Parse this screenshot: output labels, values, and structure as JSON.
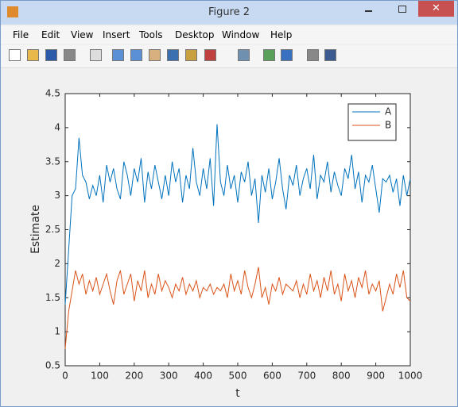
{
  "window": {
    "title": "Figure 2",
    "menu": [
      "File",
      "Edit",
      "View",
      "Insert",
      "Tools",
      "Desktop",
      "Window",
      "Help"
    ]
  },
  "chart_data": {
    "type": "line",
    "xlabel": "t",
    "ylabel": "Estimate",
    "xlim": [
      0,
      1000
    ],
    "ylim": [
      0.5,
      4.5
    ],
    "xticks": [
      0,
      100,
      200,
      300,
      400,
      500,
      600,
      700,
      800,
      900,
      1000
    ],
    "yticks": [
      0.5,
      1,
      1.5,
      2,
      2.5,
      3,
      3.5,
      4,
      4.5
    ],
    "legend": "northeast",
    "grid": false,
    "x": [
      0,
      10,
      20,
      30,
      40,
      50,
      60,
      70,
      80,
      90,
      100,
      110,
      120,
      130,
      140,
      150,
      160,
      170,
      180,
      190,
      200,
      210,
      220,
      230,
      240,
      250,
      260,
      270,
      280,
      290,
      300,
      310,
      320,
      330,
      340,
      350,
      360,
      370,
      380,
      390,
      400,
      410,
      420,
      430,
      440,
      450,
      460,
      470,
      480,
      490,
      500,
      510,
      520,
      530,
      540,
      550,
      560,
      570,
      580,
      590,
      600,
      610,
      620,
      630,
      640,
      650,
      660,
      670,
      680,
      690,
      700,
      710,
      720,
      730,
      740,
      750,
      760,
      770,
      780,
      790,
      800,
      810,
      820,
      830,
      840,
      850,
      860,
      870,
      880,
      890,
      900,
      910,
      920,
      930,
      940,
      950,
      960,
      970,
      980,
      990,
      1000
    ],
    "series": [
      {
        "name": "A",
        "color": "#0072bd",
        "values": [
          1.4,
          2.2,
          3.0,
          3.1,
          3.85,
          3.3,
          3.2,
          2.95,
          3.15,
          3.0,
          3.3,
          2.9,
          3.45,
          3.2,
          3.4,
          3.1,
          2.95,
          3.5,
          3.3,
          3.0,
          3.4,
          3.2,
          3.55,
          2.9,
          3.35,
          3.1,
          3.45,
          3.2,
          2.95,
          3.3,
          3.0,
          3.5,
          3.2,
          3.4,
          2.9,
          3.3,
          3.1,
          3.7,
          3.2,
          3.0,
          3.4,
          3.1,
          3.55,
          2.85,
          4.05,
          3.2,
          3.0,
          3.45,
          3.1,
          3.3,
          2.9,
          3.35,
          3.2,
          3.5,
          3.0,
          3.25,
          2.6,
          3.3,
          3.05,
          3.4,
          2.95,
          3.2,
          3.55,
          3.1,
          2.8,
          3.3,
          3.15,
          3.45,
          3.0,
          3.25,
          3.4,
          3.1,
          3.6,
          2.95,
          3.3,
          3.2,
          3.5,
          3.05,
          3.35,
          3.15,
          3.0,
          3.4,
          3.25,
          3.6,
          3.1,
          3.35,
          2.9,
          3.3,
          3.2,
          3.45,
          3.1,
          2.75,
          3.25,
          3.2,
          3.3,
          3.05,
          3.25,
          2.85,
          3.3,
          3.0,
          3.25
        ]
      },
      {
        "name": "B",
        "color": "#d95319",
        "values": [
          0.75,
          1.3,
          1.6,
          1.9,
          1.7,
          1.85,
          1.55,
          1.75,
          1.6,
          1.8,
          1.55,
          1.7,
          1.85,
          1.6,
          1.4,
          1.75,
          1.9,
          1.55,
          1.7,
          1.85,
          1.45,
          1.75,
          1.6,
          1.9,
          1.5,
          1.7,
          1.55,
          1.85,
          1.6,
          1.75,
          1.65,
          1.5,
          1.7,
          1.6,
          1.8,
          1.55,
          1.7,
          1.6,
          1.75,
          1.5,
          1.65,
          1.6,
          1.7,
          1.55,
          1.65,
          1.6,
          1.7,
          1.5,
          1.85,
          1.6,
          1.75,
          1.55,
          1.9,
          1.65,
          1.5,
          1.7,
          1.95,
          1.5,
          1.65,
          1.4,
          1.7,
          1.6,
          1.8,
          1.55,
          1.7,
          1.65,
          1.6,
          1.75,
          1.5,
          1.7,
          1.55,
          1.85,
          1.6,
          1.75,
          1.5,
          1.8,
          1.6,
          1.9,
          1.55,
          1.7,
          1.45,
          1.85,
          1.6,
          1.75,
          1.5,
          1.8,
          1.65,
          1.9,
          1.55,
          1.7,
          1.6,
          1.75,
          1.3,
          1.5,
          1.7,
          1.55,
          1.85,
          1.65,
          1.9,
          1.5,
          1.45
        ]
      }
    ]
  }
}
